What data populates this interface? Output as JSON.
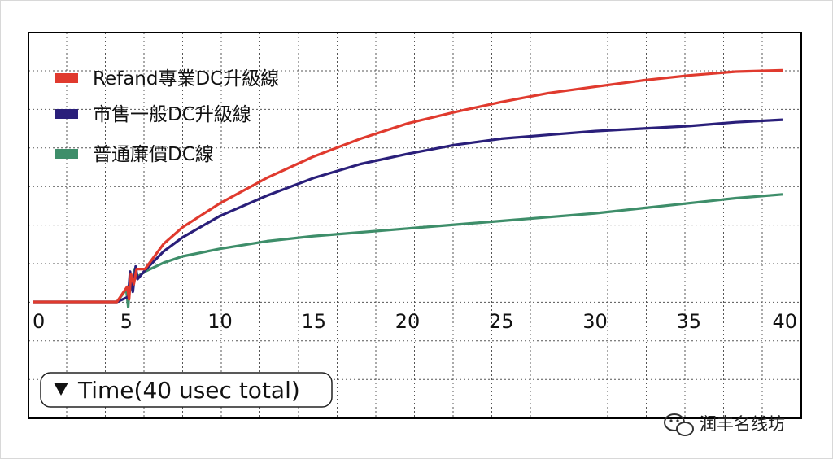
{
  "chart_data": {
    "type": "line",
    "xlim": [
      0,
      40
    ],
    "x_ticks": [
      "0",
      "5",
      "10",
      "15",
      "20",
      "25",
      "30",
      "35",
      "40"
    ],
    "grid": true,
    "grid_style": "dotted",
    "legend_position": "top-left",
    "time_label": "Time(40 usec total)",
    "series": [
      {
        "name": "Refand專業DC升級線",
        "color": "#e03a2e",
        "points": [
          [
            0,
            0
          ],
          [
            4.5,
            0
          ],
          [
            5,
            0.3
          ],
          [
            5.3,
            1.0
          ],
          [
            6,
            1.3
          ],
          [
            7,
            2.3
          ],
          [
            8,
            2.95
          ],
          [
            10,
            3.9
          ],
          [
            12.5,
            4.9
          ],
          [
            15,
            5.75
          ],
          [
            17.5,
            6.45
          ],
          [
            20,
            7.05
          ],
          [
            22.5,
            7.5
          ],
          [
            25,
            7.9
          ],
          [
            27.5,
            8.25
          ],
          [
            30,
            8.5
          ],
          [
            32.5,
            8.75
          ],
          [
            35,
            8.95
          ],
          [
            37.5,
            9.1
          ],
          [
            40,
            9.15
          ]
        ]
      },
      {
        "name": "市售一般DC升級線",
        "color": "#2a1f7a",
        "points": [
          [
            0,
            0
          ],
          [
            4.5,
            0
          ],
          [
            5,
            0.3
          ],
          [
            5.3,
            0.95
          ],
          [
            6,
            1.25
          ],
          [
            7,
            2.0
          ],
          [
            8,
            2.55
          ],
          [
            10,
            3.4
          ],
          [
            12.5,
            4.2
          ],
          [
            15,
            4.9
          ],
          [
            17.5,
            5.45
          ],
          [
            20,
            5.85
          ],
          [
            22.5,
            6.2
          ],
          [
            25,
            6.45
          ],
          [
            27.5,
            6.6
          ],
          [
            30,
            6.75
          ],
          [
            32.5,
            6.85
          ],
          [
            35,
            6.95
          ],
          [
            37.5,
            7.1
          ],
          [
            40,
            7.2
          ]
        ]
      },
      {
        "name": "普通廉價DC線",
        "color": "#3e8e6a",
        "points": [
          [
            0,
            0
          ],
          [
            4.5,
            0
          ],
          [
            5,
            0.3
          ],
          [
            5.3,
            0.9
          ],
          [
            6,
            1.2
          ],
          [
            7,
            1.55
          ],
          [
            8,
            1.8
          ],
          [
            10,
            2.1
          ],
          [
            12.5,
            2.4
          ],
          [
            15,
            2.6
          ],
          [
            17.5,
            2.75
          ],
          [
            20,
            2.9
          ],
          [
            22.5,
            3.05
          ],
          [
            25,
            3.2
          ],
          [
            27.5,
            3.35
          ],
          [
            30,
            3.5
          ],
          [
            32.5,
            3.7
          ],
          [
            35,
            3.9
          ],
          [
            37.5,
            4.1
          ],
          [
            40,
            4.25
          ]
        ]
      }
    ]
  },
  "watermark": {
    "text": "润丰名线坊",
    "icon": "wechat-icon"
  }
}
